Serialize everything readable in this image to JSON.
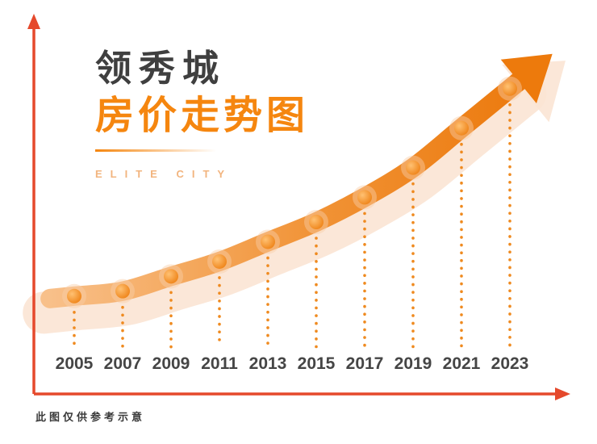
{
  "header": {
    "title_line1": "领秀城",
    "title_line2": "房价走势图",
    "subtitle": "ELITE CITY"
  },
  "footnote": "此图仅供参考示意",
  "colors": {
    "axis": "#e5492c",
    "accent_orange": "#f5860f",
    "band_start": "#f8c08a",
    "band_end": "#ec790c",
    "band_shadow": "#fbe4d4",
    "arrow": "#ed7a0c",
    "dot_outer": "#ffc173",
    "dot_inner": "#ed7d0e",
    "dot_halo": "#f8cfa8",
    "dotted_line": "#ef8a1f",
    "year_label": "#454545",
    "title_dark": "#3f3f3f",
    "subtitle": "#f2b47e"
  },
  "chart_data": {
    "type": "line",
    "title": "领秀城房价走势图",
    "subtitle": "ELITE CITY",
    "categories": [
      "2005",
      "2007",
      "2009",
      "2011",
      "2013",
      "2015",
      "2017",
      "2019",
      "2021",
      "2023"
    ],
    "values": [
      10,
      11,
      14,
      17,
      21,
      25,
      30,
      36,
      44,
      52
    ],
    "xlabel": "",
    "ylabel": "",
    "ylim": [
      0,
      60
    ],
    "grid": false,
    "legend": false,
    "style": "upward curved arrow band with dots and dotted drop lines",
    "annotations": [
      "此图仅供参考示意"
    ]
  }
}
